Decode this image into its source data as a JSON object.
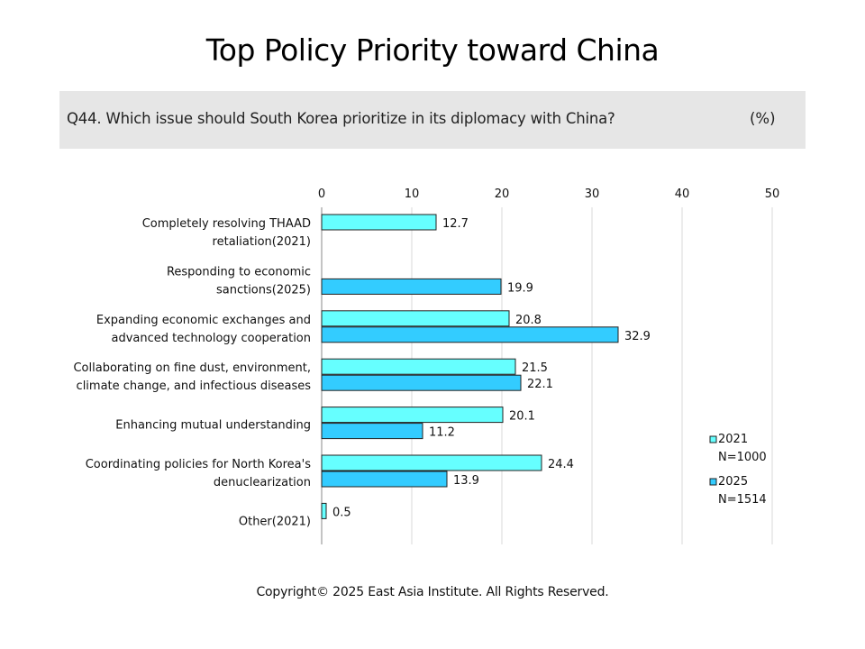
{
  "title": "Top Policy Priority toward China",
  "question": "Q44. Which issue should South Korea prioritize in its diplomacy with China?",
  "unit": "(%)",
  "copyright": "Copyright© 2025 East Asia Institute. All Rights Reserved.",
  "colors": {
    "series_2021": "#66ffff",
    "series_2025": "#33ccff",
    "bar_stroke": "#222222",
    "grid": "#d9d9d9",
    "question_bg": "#e6e6e6"
  },
  "chart_data": {
    "type": "bar",
    "orientation": "horizontal",
    "categories": [
      [
        "Completely resolving THAAD",
        "retaliation(2021)"
      ],
      [
        "Responding to economic",
        "sanctions(2025)"
      ],
      [
        "Expanding economic exchanges and",
        "advanced technology cooperation"
      ],
      [
        "Collaborating on fine dust, environment,",
        "climate change, and infectious diseases"
      ],
      [
        "Enhancing mutual understanding"
      ],
      [
        "Coordinating policies for North Korea's",
        "denuclearization"
      ],
      [
        "Other(2021)"
      ]
    ],
    "series": [
      {
        "name": "2021",
        "sample": "N=1000",
        "color": "#66ffff",
        "values": [
          12.7,
          null,
          20.8,
          21.5,
          20.1,
          24.4,
          0.5
        ]
      },
      {
        "name": "2025",
        "sample": "N=1514",
        "color": "#33ccff",
        "values": [
          null,
          19.9,
          32.9,
          22.1,
          11.2,
          13.9,
          null
        ]
      }
    ],
    "xlim": [
      0,
      50
    ],
    "xticks": [
      0,
      10,
      20,
      30,
      40,
      50
    ],
    "x_axis_position": "top",
    "grid": true,
    "legend_position": "right"
  }
}
